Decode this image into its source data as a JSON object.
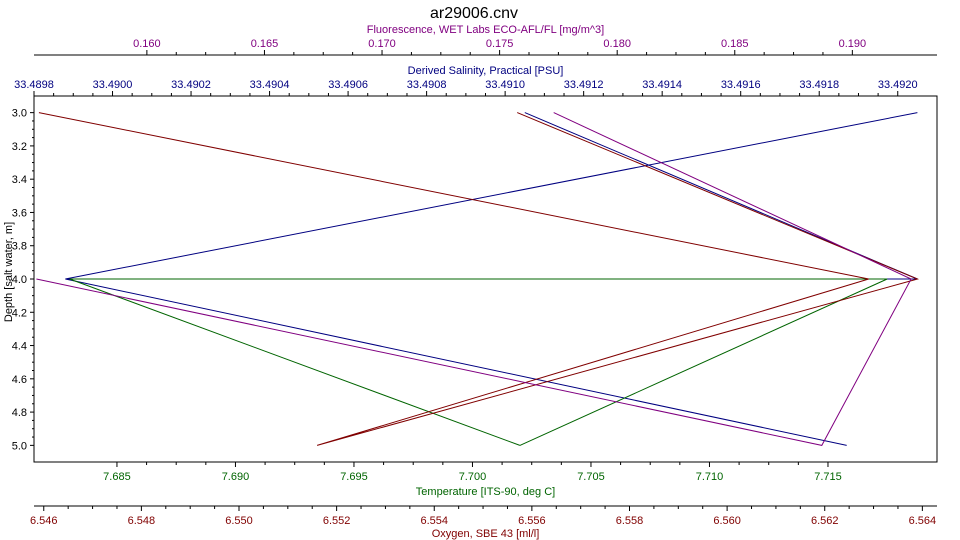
{
  "chart_data": {
    "type": "line",
    "title": "ar29006.cnv",
    "y_axis": {
      "label": "Depth [salt water, m]",
      "range": [
        5.1,
        2.9
      ],
      "inverted": true,
      "ticks": [
        "3.0",
        "3.2",
        "3.4",
        "3.6",
        "3.8",
        "4.0",
        "4.2",
        "4.4",
        "4.6",
        "4.8",
        "5.0"
      ],
      "color": "#000000"
    },
    "x_axes": [
      {
        "id": "fluorescence",
        "position": "top",
        "label": "Fluorescence, WET Labs ECO-AFL/FL [mg/m^3]",
        "color": "#800080",
        "range": [
          0.1552,
          0.1936
        ],
        "ticks": [
          "0.160",
          "0.165",
          "0.170",
          "0.175",
          "0.180",
          "0.185",
          "0.190"
        ]
      },
      {
        "id": "salinity",
        "position": "top",
        "label": "Derived Salinity, Practical [PSU]",
        "color": "#000080",
        "range": [
          33.4898,
          33.4921
        ],
        "ticks": [
          "33.4898",
          "33.4900",
          "33.4902",
          "33.4904",
          "33.4906",
          "33.4908",
          "33.4910",
          "33.4912",
          "33.4914",
          "33.4916",
          "33.4918",
          "33.4920"
        ]
      },
      {
        "id": "temperature",
        "position": "bottom",
        "label": "Temperature [ITS-90, deg C]",
        "color": "#006400",
        "range": [
          7.6815,
          7.7196
        ],
        "ticks": [
          "7.685",
          "7.690",
          "7.695",
          "7.700",
          "7.705",
          "7.710",
          "7.715"
        ]
      },
      {
        "id": "oxygen",
        "position": "bottom",
        "label": "Oxygen, SBE 43 [ml/l]",
        "color": "#800000",
        "range": [
          6.5458,
          6.5643
        ],
        "ticks": [
          "6.546",
          "6.548",
          "6.550",
          "6.552",
          "6.554",
          "6.556",
          "6.558",
          "6.560",
          "6.562",
          "6.564"
        ]
      }
    ],
    "series": [
      {
        "axis": "salinity",
        "color": "#000080",
        "points": [
          [
            33.49205,
            3.0
          ],
          [
            33.48988,
            4.0
          ],
          [
            33.49187,
            5.0
          ]
        ]
      },
      {
        "axis": "salinity",
        "color": "#000080",
        "points": [
          [
            33.49105,
            3.0
          ],
          [
            33.49205,
            4.0
          ],
          [
            33.48988,
            4.0
          ]
        ]
      },
      {
        "axis": "temperature",
        "color": "#006400",
        "points": [
          [
            7.702,
            5.0
          ],
          [
            7.683,
            4.0
          ],
          [
            7.7175,
            4.0
          ],
          [
            7.702,
            5.0
          ]
        ]
      },
      {
        "axis": "oxygen",
        "color": "#800000",
        "points": [
          [
            6.5459,
            3.0
          ],
          [
            6.5629,
            4.0
          ],
          [
            6.5516,
            5.0
          ],
          [
            6.5639,
            4.0
          ],
          [
            6.5557,
            3.0
          ]
        ]
      },
      {
        "axis": "fluorescence",
        "color": "#800080",
        "points": [
          [
            0.1773,
            3.0
          ],
          [
            0.1925,
            4.0
          ],
          [
            0.1887,
            5.0
          ],
          [
            0.1553,
            4.0
          ]
        ]
      }
    ]
  }
}
